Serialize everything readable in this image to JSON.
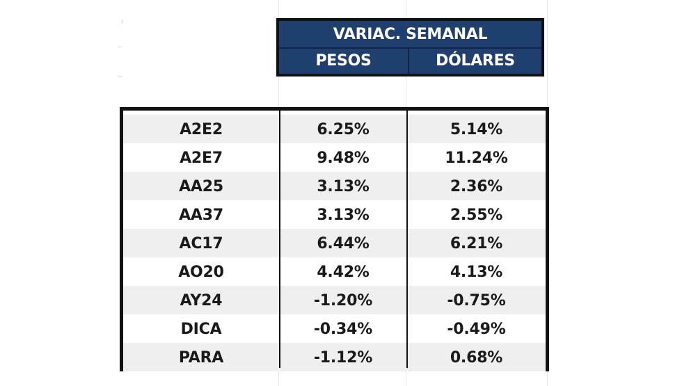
{
  "header": {
    "title": "VARIAC. SEMANAL",
    "col_pesos": "PESOS",
    "col_dolares": "DÓLARES"
  },
  "rows": [
    {
      "ticker": "A2E2",
      "pesos": "6.25%",
      "dolares": "5.14%"
    },
    {
      "ticker": "A2E7",
      "pesos": "9.48%",
      "dolares": "11.24%"
    },
    {
      "ticker": "AA25",
      "pesos": "3.13%",
      "dolares": "2.36%"
    },
    {
      "ticker": "AA37",
      "pesos": "3.13%",
      "dolares": "2.55%"
    },
    {
      "ticker": "AC17",
      "pesos": "6.44%",
      "dolares": "6.21%"
    },
    {
      "ticker": "AO20",
      "pesos": "4.42%",
      "dolares": "4.13%"
    },
    {
      "ticker": "AY24",
      "pesos": "-1.20%",
      "dolares": "-0.75%"
    },
    {
      "ticker": "DICA",
      "pesos": "-0.34%",
      "dolares": "-0.49%"
    },
    {
      "ticker": "PARA",
      "pesos": "-1.12%",
      "dolares": "0.68%"
    }
  ],
  "colors": {
    "header_bg": "#1f3f6e",
    "header_text": "#ffffff",
    "row_shade": "#efefef",
    "border": "#111111"
  }
}
